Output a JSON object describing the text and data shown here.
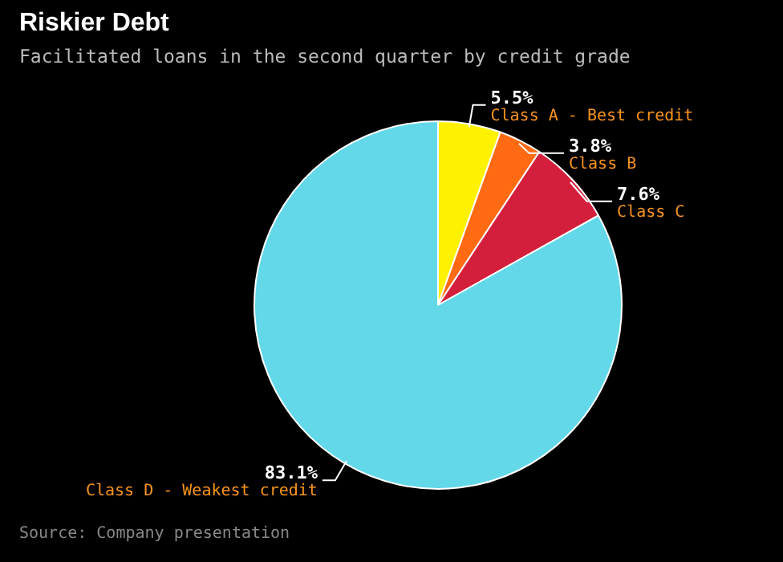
{
  "chart_data": {
    "type": "pie",
    "title": "Riskier Debt",
    "subtitle": "Facilitated loans in the second quarter by credit grade",
    "categories": [
      "Class A - Best credit",
      "Class B",
      "Class C",
      "Class D - Weakest credit"
    ],
    "values": [
      5.5,
      3.8,
      7.6,
      83.1
    ],
    "value_labels": [
      "5.5%",
      "3.8%",
      "7.6%",
      "83.1%"
    ],
    "colors": [
      "#fff200",
      "#ff6a13",
      "#d41f3c",
      "#62d8e8"
    ],
    "annotations": [
      "Source: Company presentation"
    ],
    "legend": false
  }
}
